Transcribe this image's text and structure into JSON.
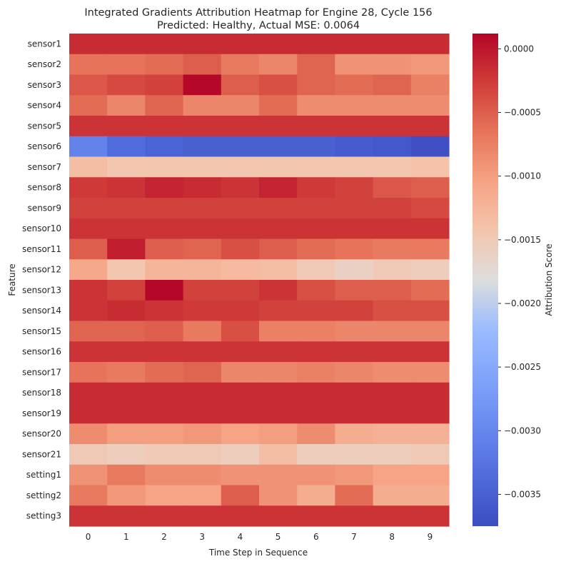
{
  "chart_data": {
    "type": "heatmap",
    "title": "Integrated Gradients Attribution Heatmap for Engine 28, Cycle 156",
    "subtitle": "Predicted: Healthy, Actual MSE: 0.0064",
    "xlabel": "Time Step in Sequence",
    "ylabel": "Feature",
    "colorbar_label": "Attribution Score",
    "colormap": "coolwarm",
    "vmin": -0.00375,
    "vmax": 0.00012,
    "colorbar_ticks": [
      "0.0000",
      "−0.0005",
      "−0.0010",
      "−0.0015",
      "−0.0020",
      "−0.0025",
      "−0.0030",
      "−0.0035"
    ],
    "colorbar_tick_values": [
      0,
      -0.0005,
      -0.001,
      -0.0015,
      -0.002,
      -0.0025,
      -0.003,
      -0.0035
    ],
    "x": [
      "0",
      "1",
      "2",
      "3",
      "4",
      "5",
      "6",
      "7",
      "8",
      "9"
    ],
    "y": [
      "sensor1",
      "sensor2",
      "sensor3",
      "sensor4",
      "sensor5",
      "sensor6",
      "sensor7",
      "sensor8",
      "sensor9",
      "sensor10",
      "sensor11",
      "sensor12",
      "sensor13",
      "sensor14",
      "sensor15",
      "sensor16",
      "sensor17",
      "sensor18",
      "sensor19",
      "sensor20",
      "sensor21",
      "setting1",
      "setting2",
      "setting3"
    ],
    "values": [
      [
        -0.00015,
        -0.00015,
        -0.00015,
        -0.00015,
        -0.00015,
        -0.00015,
        -0.00015,
        -0.00015,
        -0.00015,
        -0.00015
      ],
      [
        -0.00065,
        -0.00065,
        -0.0006,
        -0.0005,
        -0.0007,
        -0.0008,
        -0.00055,
        -0.0009,
        -0.0009,
        -0.00095
      ],
      [
        -0.00045,
        -0.00035,
        -0.0003,
        0.0001,
        -0.0005,
        -0.0004,
        -0.00055,
        -0.0006,
        -0.00055,
        -0.00075
      ],
      [
        -0.0006,
        -0.0008,
        -0.00055,
        -0.0008,
        -0.0008,
        -0.0006,
        -0.00085,
        -0.00085,
        -0.00085,
        -0.00085
      ],
      [
        -0.0002,
        -0.0002,
        -0.0002,
        -0.0002,
        -0.0002,
        -0.0002,
        -0.0002,
        -0.0002,
        -0.0002,
        -0.0002
      ],
      [
        -0.00305,
        -0.00335,
        -0.00345,
        -0.0035,
        -0.0035,
        -0.0035,
        -0.0035,
        -0.00355,
        -0.0036,
        -0.0037
      ],
      [
        -0.00135,
        -0.00145,
        -0.00145,
        -0.00145,
        -0.00145,
        -0.00145,
        -0.00145,
        -0.00145,
        -0.00145,
        -0.0014
      ],
      [
        -0.00025,
        -0.0002,
        -0.0001,
        -0.00015,
        -0.0002,
        -0.0001,
        -0.00025,
        -0.0003,
        -0.00045,
        -0.0005
      ],
      [
        -0.0003,
        -0.0003,
        -0.0003,
        -0.0003,
        -0.0003,
        -0.0003,
        -0.0003,
        -0.0003,
        -0.0003,
        -0.00035
      ],
      [
        -0.0002,
        -0.0002,
        -0.0002,
        -0.0002,
        -0.0002,
        -0.0002,
        -0.0002,
        -0.0002,
        -0.0002,
        -0.0002
      ],
      [
        -0.0005,
        -5e-05,
        -0.0005,
        -0.00055,
        -0.0004,
        -0.0005,
        -0.0006,
        -0.00065,
        -0.0007,
        -0.0007
      ],
      [
        -0.0011,
        -0.00145,
        -0.00125,
        -0.00125,
        -0.0013,
        -0.00135,
        -0.0015,
        -0.0016,
        -0.0015,
        -0.00155
      ],
      [
        -0.0002,
        -0.0003,
        0.0001,
        -0.0003,
        -0.0003,
        -0.0002,
        -0.0004,
        -0.0005,
        -0.0005,
        -0.0006
      ],
      [
        -0.0002,
        -0.00015,
        -0.0002,
        -0.00025,
        -0.00025,
        -0.0003,
        -0.0003,
        -0.0003,
        -0.0004,
        -0.0004
      ],
      [
        -0.00055,
        -0.00055,
        -0.0005,
        -0.0007,
        -0.0004,
        -0.00075,
        -0.00075,
        -0.0008,
        -0.0008,
        -0.0008
      ],
      [
        -0.0002,
        -0.0002,
        -0.0002,
        -0.0002,
        -0.0002,
        -0.0002,
        -0.0002,
        -0.0002,
        -0.0002,
        -0.0002
      ],
      [
        -0.00065,
        -0.0007,
        -0.0006,
        -0.00055,
        -0.0008,
        -0.0008,
        -0.00075,
        -0.0008,
        -0.00085,
        -0.00085
      ],
      [
        -0.00015,
        -0.00015,
        -0.00015,
        -0.00015,
        -0.00015,
        -0.00015,
        -0.00015,
        -0.00015,
        -0.00015,
        -0.00015
      ],
      [
        -0.00015,
        -0.00015,
        -0.00015,
        -0.00015,
        -0.00015,
        -0.00015,
        -0.00015,
        -0.00015,
        -0.00015,
        -0.00015
      ],
      [
        -0.00085,
        -0.001,
        -0.001,
        -0.00095,
        -0.00105,
        -0.001,
        -0.00085,
        -0.00115,
        -0.0012,
        -0.0012
      ],
      [
        -0.0015,
        -0.00155,
        -0.0015,
        -0.0015,
        -0.00155,
        -0.00135,
        -0.00155,
        -0.00155,
        -0.00155,
        -0.0015
      ],
      [
        -0.0009,
        -0.0007,
        -0.00085,
        -0.00085,
        -0.0009,
        -0.0009,
        -0.0009,
        -0.00095,
        -0.00105,
        -0.00105
      ],
      [
        -0.0007,
        -0.00095,
        -0.00105,
        -0.00105,
        -0.0005,
        -0.0009,
        -0.00115,
        -0.0006,
        -0.00115,
        -0.00115
      ],
      [
        -0.0002,
        -0.0002,
        -0.0002,
        -0.0002,
        -0.0002,
        -0.0002,
        -0.0002,
        -0.0002,
        -0.0002,
        -0.0002
      ]
    ]
  }
}
